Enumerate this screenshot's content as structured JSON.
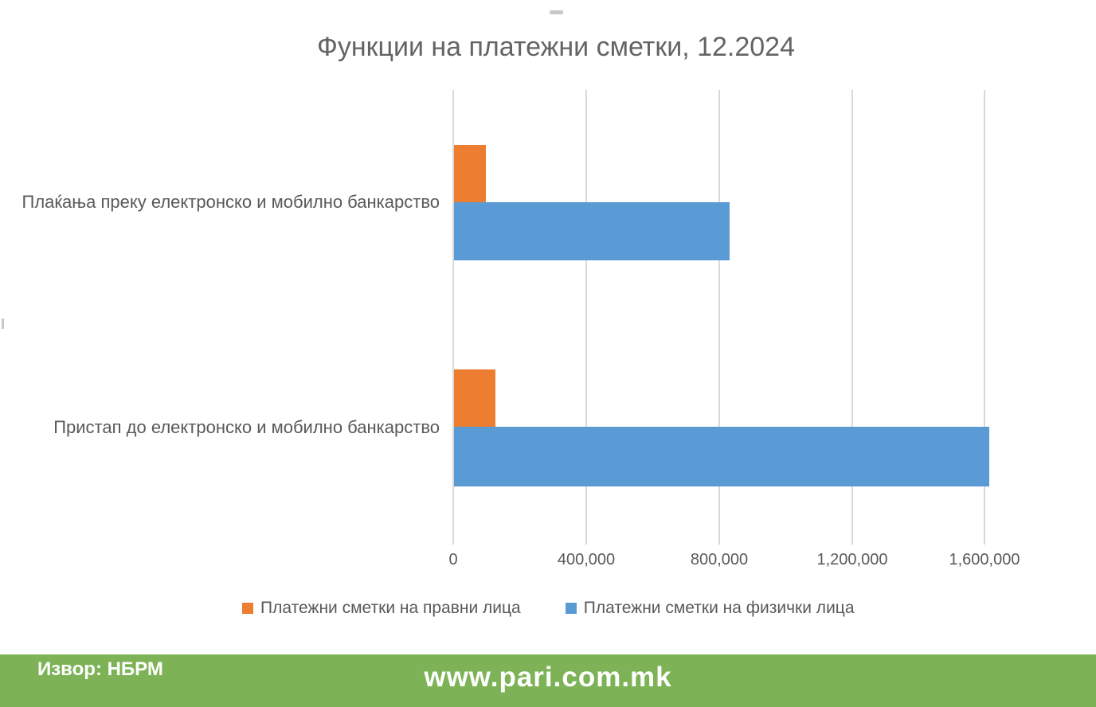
{
  "chart_data": {
    "type": "bar",
    "orientation": "horizontal",
    "title": "Функции на платежни сметки, 12.2024",
    "categories": [
      "Плаќања преку електронско и мобилно банкарство",
      "Пристап до електронско и мобилно банкарство"
    ],
    "series": [
      {
        "name": "Платежни сметки на правни лица",
        "color": "#ED7D31",
        "values": [
          95000,
          125000
        ]
      },
      {
        "name": "Платежни сметки на физички лица",
        "color": "#5B9BD5",
        "values": [
          830000,
          1612000
        ]
      }
    ],
    "x_ticks": [
      0,
      400000,
      800000,
      1200000,
      1600000
    ],
    "x_tick_labels": [
      "0",
      "400,000",
      "800,000",
      "1,200,000",
      "1,600,000"
    ],
    "xlim": [
      0,
      1600000
    ],
    "grid": true,
    "gridline_color": "#D9D9D9",
    "legend_position": "bottom",
    "title_color": "#646464",
    "label_color": "#595959"
  },
  "footer": {
    "source_label": "Извор: НБРМ",
    "website": "www.pari.com.mk",
    "background_color": "#7DB356",
    "text_color": "#FFFFFF"
  }
}
